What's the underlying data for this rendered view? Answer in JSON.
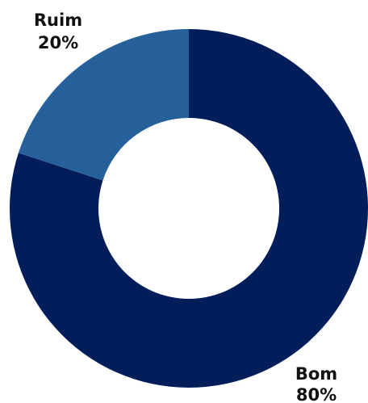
{
  "chart_data": {
    "type": "pie",
    "variant": "donut",
    "title": "",
    "slices": [
      {
        "label": "Bom",
        "value": 80,
        "value_label": "80%",
        "color": "#021e5a"
      },
      {
        "label": "Ruim",
        "value": 20,
        "value_label": "20%",
        "color": "#25609a"
      }
    ],
    "start": "12 o'clock",
    "direction": "clockwise",
    "legend": "none"
  }
}
